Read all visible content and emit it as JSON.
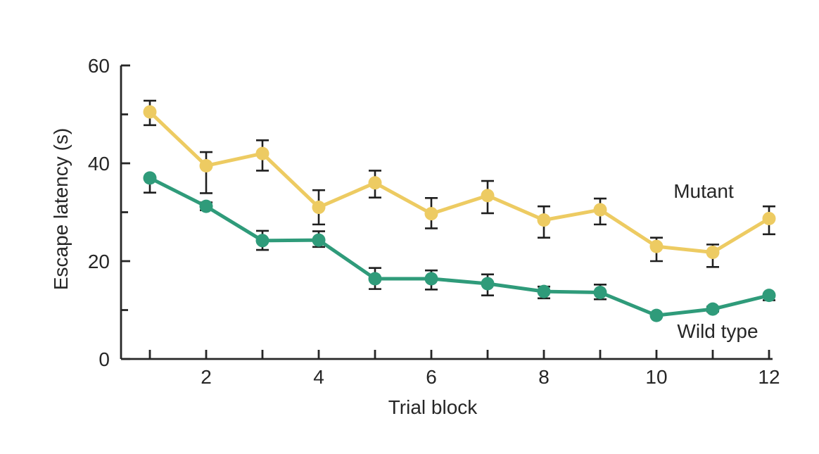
{
  "figure": {
    "background": "#ffffff",
    "ink_color": "#262626",
    "error_bar_color": "#1f1f1f"
  },
  "chart_data": {
    "type": "line",
    "title": "",
    "xlabel": "Trial block",
    "ylabel": "Escape latency (s)",
    "x": [
      1,
      2,
      3,
      4,
      5,
      6,
      7,
      8,
      9,
      10,
      11,
      12
    ],
    "ylim": [
      0,
      60
    ],
    "xlim": [
      0.5,
      12.2
    ],
    "grid": false,
    "legend_position": "inline-right",
    "y_ticks": [
      {
        "v": 0,
        "label": "0"
      },
      {
        "v": 10,
        "label": ""
      },
      {
        "v": 20,
        "label": "20"
      },
      {
        "v": 30,
        "label": ""
      },
      {
        "v": 40,
        "label": "40"
      },
      {
        "v": 50,
        "label": ""
      },
      {
        "v": 60,
        "label": "60"
      }
    ],
    "x_ticks": [
      {
        "v": 1,
        "label": ""
      },
      {
        "v": 2,
        "label": "2"
      },
      {
        "v": 3,
        "label": ""
      },
      {
        "v": 4,
        "label": "4"
      },
      {
        "v": 5,
        "label": ""
      },
      {
        "v": 6,
        "label": "6"
      },
      {
        "v": 7,
        "label": ""
      },
      {
        "v": 8,
        "label": "8"
      },
      {
        "v": 9,
        "label": ""
      },
      {
        "v": 10,
        "label": "10"
      },
      {
        "v": 11,
        "label": ""
      },
      {
        "v": 12,
        "label": "12"
      }
    ],
    "series": [
      {
        "name": "Mutant",
        "color": "#EDCB62",
        "values": [
          50.5,
          39.5,
          42.0,
          31.0,
          36.0,
          29.7,
          33.4,
          28.4,
          30.5,
          23.0,
          21.8,
          28.7
        ],
        "err_up": [
          2.3,
          2.8,
          2.7,
          3.5,
          2.5,
          3.2,
          3.0,
          2.8,
          2.3,
          1.8,
          1.6,
          2.5
        ],
        "err_down": [
          2.7,
          5.6,
          3.5,
          3.5,
          3.0,
          3.0,
          3.6,
          3.6,
          3.0,
          3.0,
          3.0,
          3.2
        ]
      },
      {
        "name": "Wild type",
        "color": "#2F9B7A",
        "values": [
          37.0,
          31.2,
          24.2,
          24.3,
          16.4,
          16.4,
          15.4,
          13.8,
          13.6,
          8.9,
          10.2,
          13.0
        ],
        "err_up": [
          0,
          0.8,
          2.0,
          1.8,
          2.2,
          1.7,
          1.9,
          1.0,
          1.6,
          0,
          0.5,
          0.3
        ],
        "err_down": [
          3.0,
          0.8,
          1.9,
          1.4,
          2.1,
          2.2,
          2.4,
          1.4,
          1.4,
          0,
          0.5,
          1.0
        ]
      }
    ]
  }
}
